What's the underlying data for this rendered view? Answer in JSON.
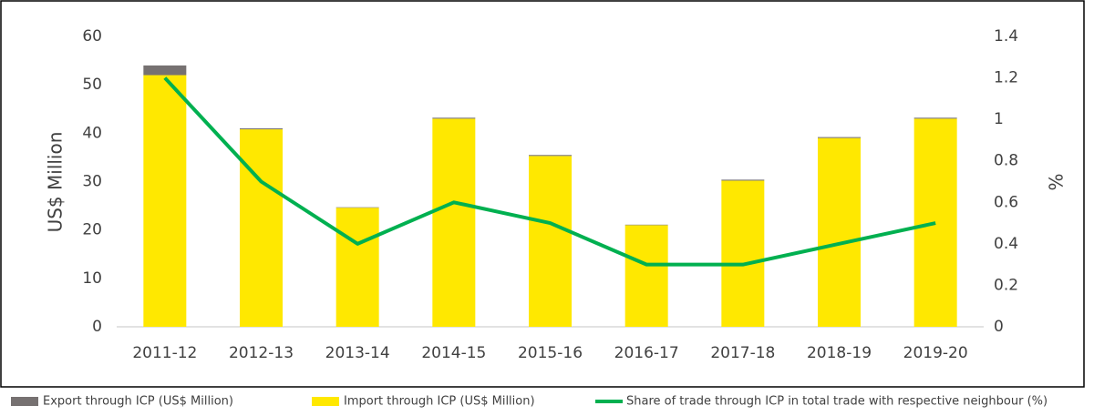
{
  "chart_data": {
    "type": "bar_line",
    "categories": [
      "2011-12",
      "2012-13",
      "2013-14",
      "2014-15",
      "2015-16",
      "2016-17",
      "2017-18",
      "2018-19",
      "2019-20"
    ],
    "ylabel": "US$ Million",
    "y2label": "%",
    "series": [
      {
        "name": "Export through ICP (US$ Million)",
        "color": "#767171",
        "type": "bar",
        "values": [
          2,
          0.2,
          0.1,
          0.2,
          0.2,
          0.1,
          0.2,
          0.2,
          0.2
        ]
      },
      {
        "name": "Import through ICP (US$ Million)",
        "color": "#ffe800",
        "type": "bar",
        "values": [
          52,
          40.8,
          24.6,
          43,
          35.3,
          21,
          30.2,
          39,
          43
        ]
      },
      {
        "name": "Share of trade through ICP in total trade with respective neighbour (%)",
        "color": "#00b050",
        "type": "line",
        "axis": "y2",
        "values": [
          1.2,
          0.7,
          0.4,
          0.6,
          0.5,
          0.3,
          0.3,
          0.4,
          0.5
        ]
      }
    ],
    "ylim": [
      0,
      60
    ],
    "yticks": [
      0,
      10,
      20,
      30,
      40,
      50,
      60
    ],
    "y2lim": [
      0,
      1.4
    ],
    "y2ticks": [
      0,
      0.2,
      0.4,
      0.6,
      0.8,
      1,
      1.2,
      1.4
    ],
    "stacked": true,
    "grid": false
  }
}
